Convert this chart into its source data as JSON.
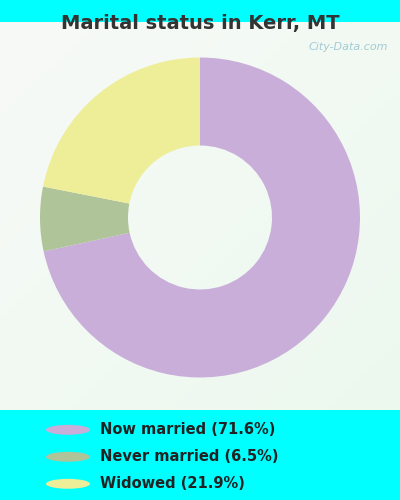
{
  "title": "Marital status in Kerr, MT",
  "slices": [
    71.6,
    6.5,
    21.9
  ],
  "colors": [
    "#c9aed9",
    "#b0c49a",
    "#eeee99"
  ],
  "labels": [
    "Now married (71.6%)",
    "Never married (6.5%)",
    "Widowed (21.9%)"
  ],
  "legend_colors": [
    "#c9aed9",
    "#b0c49a",
    "#eeee99"
  ],
  "bg_cyan": "#00ffff",
  "bg_chart": "#d8eedd",
  "title_color": "#333333",
  "title_fontsize": 14,
  "watermark": "City-Data.com",
  "donut_width": 0.55,
  "startangle": 90
}
